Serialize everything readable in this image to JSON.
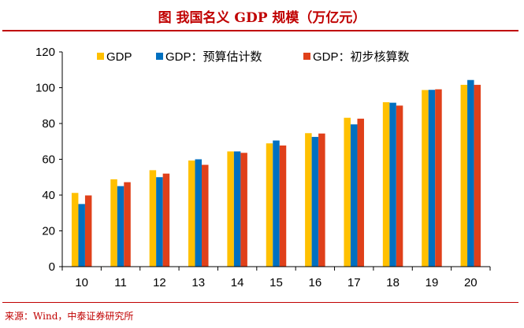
{
  "header": {
    "title": "图 我国名义 GDP 规模（万亿元）"
  },
  "footer": {
    "source": "来源：Wind，中泰证券研究所"
  },
  "chart_data": {
    "type": "bar",
    "title": "我国名义 GDP 规模（万亿元）",
    "xlabel": "",
    "ylabel": "",
    "ylim": [
      0,
      120
    ],
    "yticks": [
      "0",
      "20",
      "40",
      "60",
      "80",
      "100",
      "120"
    ],
    "categories": [
      "10",
      "11",
      "12",
      "13",
      "14",
      "15",
      "16",
      "17",
      "18",
      "19",
      "20"
    ],
    "legend_position": "top",
    "series": [
      {
        "name": "GDP",
        "color": "#FFC000",
        "values": [
          41.2,
          48.8,
          53.9,
          59.3,
          64.4,
          68.9,
          74.6,
          83.2,
          91.9,
          98.7,
          101.6
        ]
      },
      {
        "name": "GDP：预算估计数",
        "color": "#0070C0",
        "values": [
          35.0,
          45.0,
          50.0,
          60.0,
          64.4,
          70.5,
          72.5,
          79.5,
          91.6,
          98.8,
          104.3
        ]
      },
      {
        "name": "GDP：初步核算数",
        "color": "#E0401A",
        "values": [
          39.8,
          47.2,
          52.0,
          56.9,
          63.6,
          67.7,
          74.4,
          82.7,
          90.0,
          99.1,
          101.6
        ]
      }
    ]
  }
}
